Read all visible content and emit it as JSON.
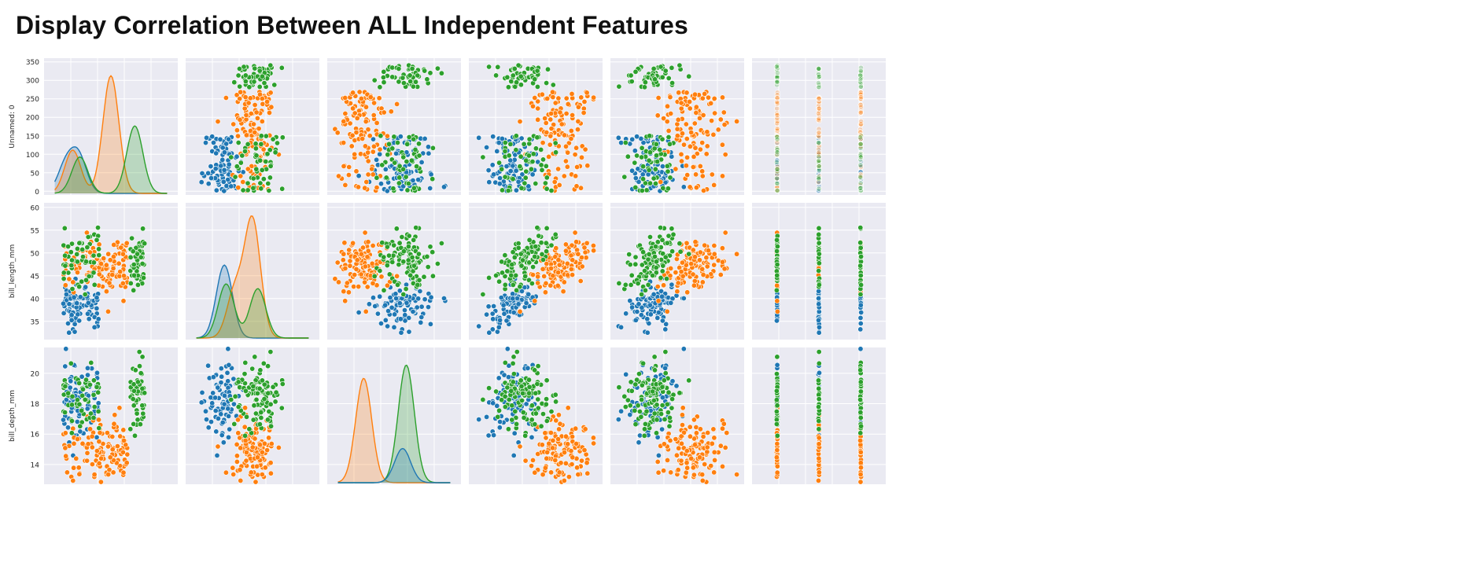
{
  "page": {
    "title": "Display Correlation Between ALL Independent Features"
  },
  "colors": {
    "blue": "#1f77b4",
    "orange": "#ff7f0e",
    "green": "#2ca02c",
    "panel_background": "#eaeaf2",
    "grid": "#ffffff",
    "text": "#262626"
  },
  "chart_data": {
    "type": "scatter",
    "subtype": "pairplot",
    "grid": true,
    "rows": [
      {
        "label": "Unnamed: 0",
        "ylim": [
          -10,
          360
        ],
        "ticks": [
          0,
          50,
          100,
          150,
          200,
          250,
          300,
          350
        ]
      },
      {
        "label": "bill_length_mm",
        "ylim": [
          31,
          61
        ],
        "ticks": [
          35,
          40,
          45,
          50,
          55,
          60
        ]
      },
      {
        "label": "bill_depth_mm",
        "ylim": [
          12.7,
          21.7
        ],
        "ticks": [
          14,
          16,
          18,
          20
        ]
      }
    ],
    "columns": [
      {
        "id": "unnamed_0",
        "label": "",
        "range": [
          -80,
          480
        ]
      },
      {
        "id": "bill_length_mm",
        "label": "",
        "range": [
          28,
          66
        ]
      },
      {
        "id": "bill_depth_mm",
        "label": "",
        "range": [
          12,
          23
        ]
      },
      {
        "id": "flipper_length_mm",
        "label": "",
        "range": [
          165,
          240
        ]
      },
      {
        "id": "body_mass_g",
        "label": "",
        "range": [
          2300,
          6700
        ]
      },
      {
        "id": "sex_code",
        "label": "",
        "range": [
          -0.6,
          2.6
        ]
      }
    ],
    "series": [
      {
        "color": "#1f77b4",
        "index_range": [
          0,
          150
        ],
        "bill_length": [
          38.8,
          2.2
        ],
        "bill_depth": [
          18.3,
          1.2
        ],
        "flipper": [
          190,
          6
        ],
        "body_mass": [
          3700,
          420
        ]
      },
      {
        "color": "#ff7f0e",
        "index_range": [
          0,
          260
        ],
        "bill_length": [
          47.4,
          3.2
        ],
        "bill_depth": [
          15.0,
          1.0
        ],
        "flipper": [
          217,
          6.5
        ],
        "body_mass": [
          5050,
          480
        ]
      },
      {
        "color": "#2ca02c",
        "index_range": [
          0,
          340
        ],
        "bill_length": [
          48.8,
          3.4
        ],
        "bill_depth": [
          18.4,
          1.1
        ],
        "flipper": [
          196,
          7
        ],
        "body_mass": [
          3730,
          380
        ]
      }
    ],
    "diagonal_kde": {
      "unnamed_0": [
        {
          "color": "#1f77b4",
          "peaks": [
            [
              10,
              80
            ],
            [
              65,
              105
            ]
          ]
        },
        {
          "color": "#ff7f0e",
          "peaks": [
            [
              40,
              125
            ],
            [
              200,
              340
            ]
          ]
        },
        {
          "color": "#2ca02c",
          "peaks": [
            [
              70,
              105
            ],
            [
              300,
              195
            ]
          ]
        }
      ],
      "bill_length_mm": [
        {
          "color": "#1f77b4",
          "peaks": [
            [
              39,
              0.31
            ]
          ]
        },
        {
          "color": "#ff7f0e",
          "peaks": [
            [
              42,
              0.2
            ],
            [
              47,
              0.5
            ]
          ]
        },
        {
          "color": "#2ca02c",
          "peaks": [
            [
              39.5,
              0.23
            ],
            [
              48.5,
              0.21
            ]
          ]
        }
      ],
      "bill_depth_mm": [
        {
          "color": "#ff7f0e",
          "peaks": [
            [
              15,
              0.55
            ]
          ]
        },
        {
          "color": "#2ca02c",
          "peaks": [
            [
              18.5,
              0.62
            ]
          ]
        },
        {
          "color": "#1f77b4",
          "peaks": [
            [
              18.2,
              0.18
            ]
          ]
        }
      ]
    }
  }
}
